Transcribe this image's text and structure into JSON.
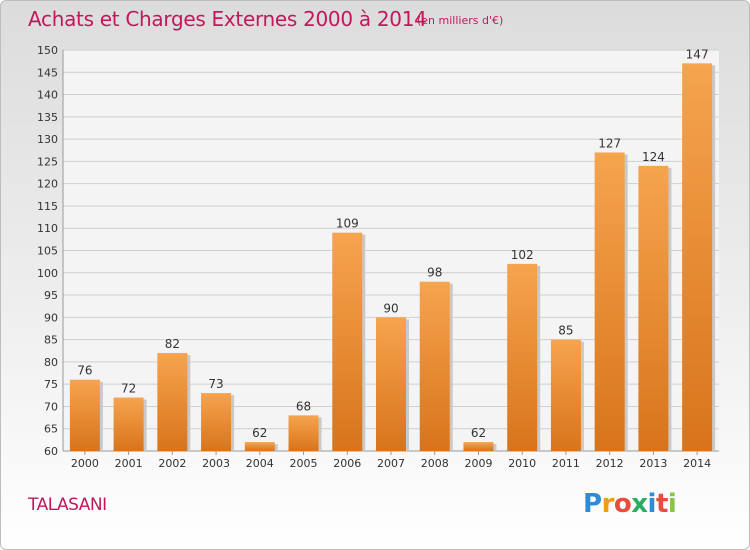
{
  "header": {
    "title": "Achats et Charges Externes 2000 à 2014",
    "unit": "(en milliers d'€)"
  },
  "place": "TALASANI",
  "brand": {
    "letters": [
      "P",
      "r",
      "o",
      "x",
      "i",
      "t",
      "i"
    ],
    "colors": [
      "#2e8bd6",
      "#f39c12",
      "#e74c3c",
      "#27ae60",
      "#2e8bd6",
      "#e74c3c",
      "#8bc34a"
    ]
  },
  "chart_data": {
    "type": "bar",
    "categories": [
      "2000",
      "2001",
      "2002",
      "2003",
      "2004",
      "2005",
      "2006",
      "2007",
      "2008",
      "2009",
      "2010",
      "2011",
      "2012",
      "2013",
      "2014"
    ],
    "values": [
      76,
      72,
      82,
      73,
      62,
      68,
      109,
      90,
      98,
      62,
      102,
      85,
      127,
      124,
      147
    ],
    "ylim": [
      60,
      150
    ],
    "yticks": [
      60,
      65,
      70,
      75,
      80,
      85,
      90,
      95,
      100,
      105,
      110,
      115,
      120,
      125,
      130,
      135,
      140,
      145,
      150
    ],
    "grid": true,
    "bar_color": "#f0922e",
    "title": "Achats et Charges Externes 2000 à 2014",
    "xlabel": "",
    "ylabel": ""
  }
}
